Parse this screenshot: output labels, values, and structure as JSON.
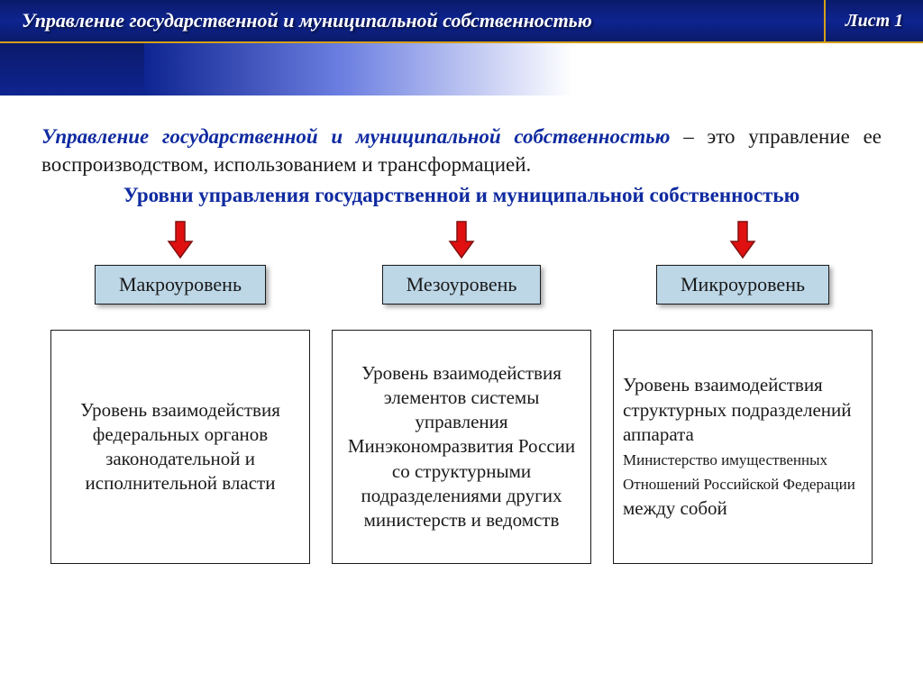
{
  "header": {
    "title": "Управление государственной и муниципальной собственностью",
    "leaf": "Лист 1",
    "title_bg_gradient": [
      "#0a1a6a",
      "#0e2490",
      "#0a1a6a"
    ],
    "accent_border": "#d4a017",
    "text_color": "#ffffff"
  },
  "subbar": {
    "gradient": [
      "#0e2490",
      "#6a7de0",
      "#ffffff"
    ]
  },
  "intro": {
    "term": "Управление государственной и муниципальной собственностью",
    "rest": " – это управление ее воспроизводством, использованием и трансформацией.",
    "term_color": "#0f2aa0",
    "fontsize": 23
  },
  "subtitle": {
    "text": "Уровни управления государственной и муниципальной собственностью",
    "color": "#0f2aa0",
    "fontsize": 23
  },
  "arrow": {
    "fill": "#e01010",
    "stroke": "#801010",
    "width": 30,
    "height": 44
  },
  "level_box": {
    "bg": "#bdd7e7",
    "border": "#1a1a1a",
    "shadow": "rgba(0,0,0,0.35)",
    "fontsize": 22
  },
  "desc_box": {
    "border": "#1a1a1a",
    "fontsize": 21,
    "small_fontsize": 17
  },
  "columns": [
    {
      "level": "Макроуровень",
      "desc_html": "Уровень взаимодействия федеральных органов законодательной и исполнительной власти"
    },
    {
      "level": "Мезоуровень",
      "desc_html": "Уровень взаимодействия элементов системы управления Минэкономразвития России<br>со структурными подразделениями других министерств и ведомств"
    },
    {
      "level": "Микроуровень",
      "desc_html": "Уровень взаимодействия структурных подразделений аппарата<br><span class=\"small\">Министерство имущественных Отношений Российской Федерации</span> между собой"
    }
  ]
}
